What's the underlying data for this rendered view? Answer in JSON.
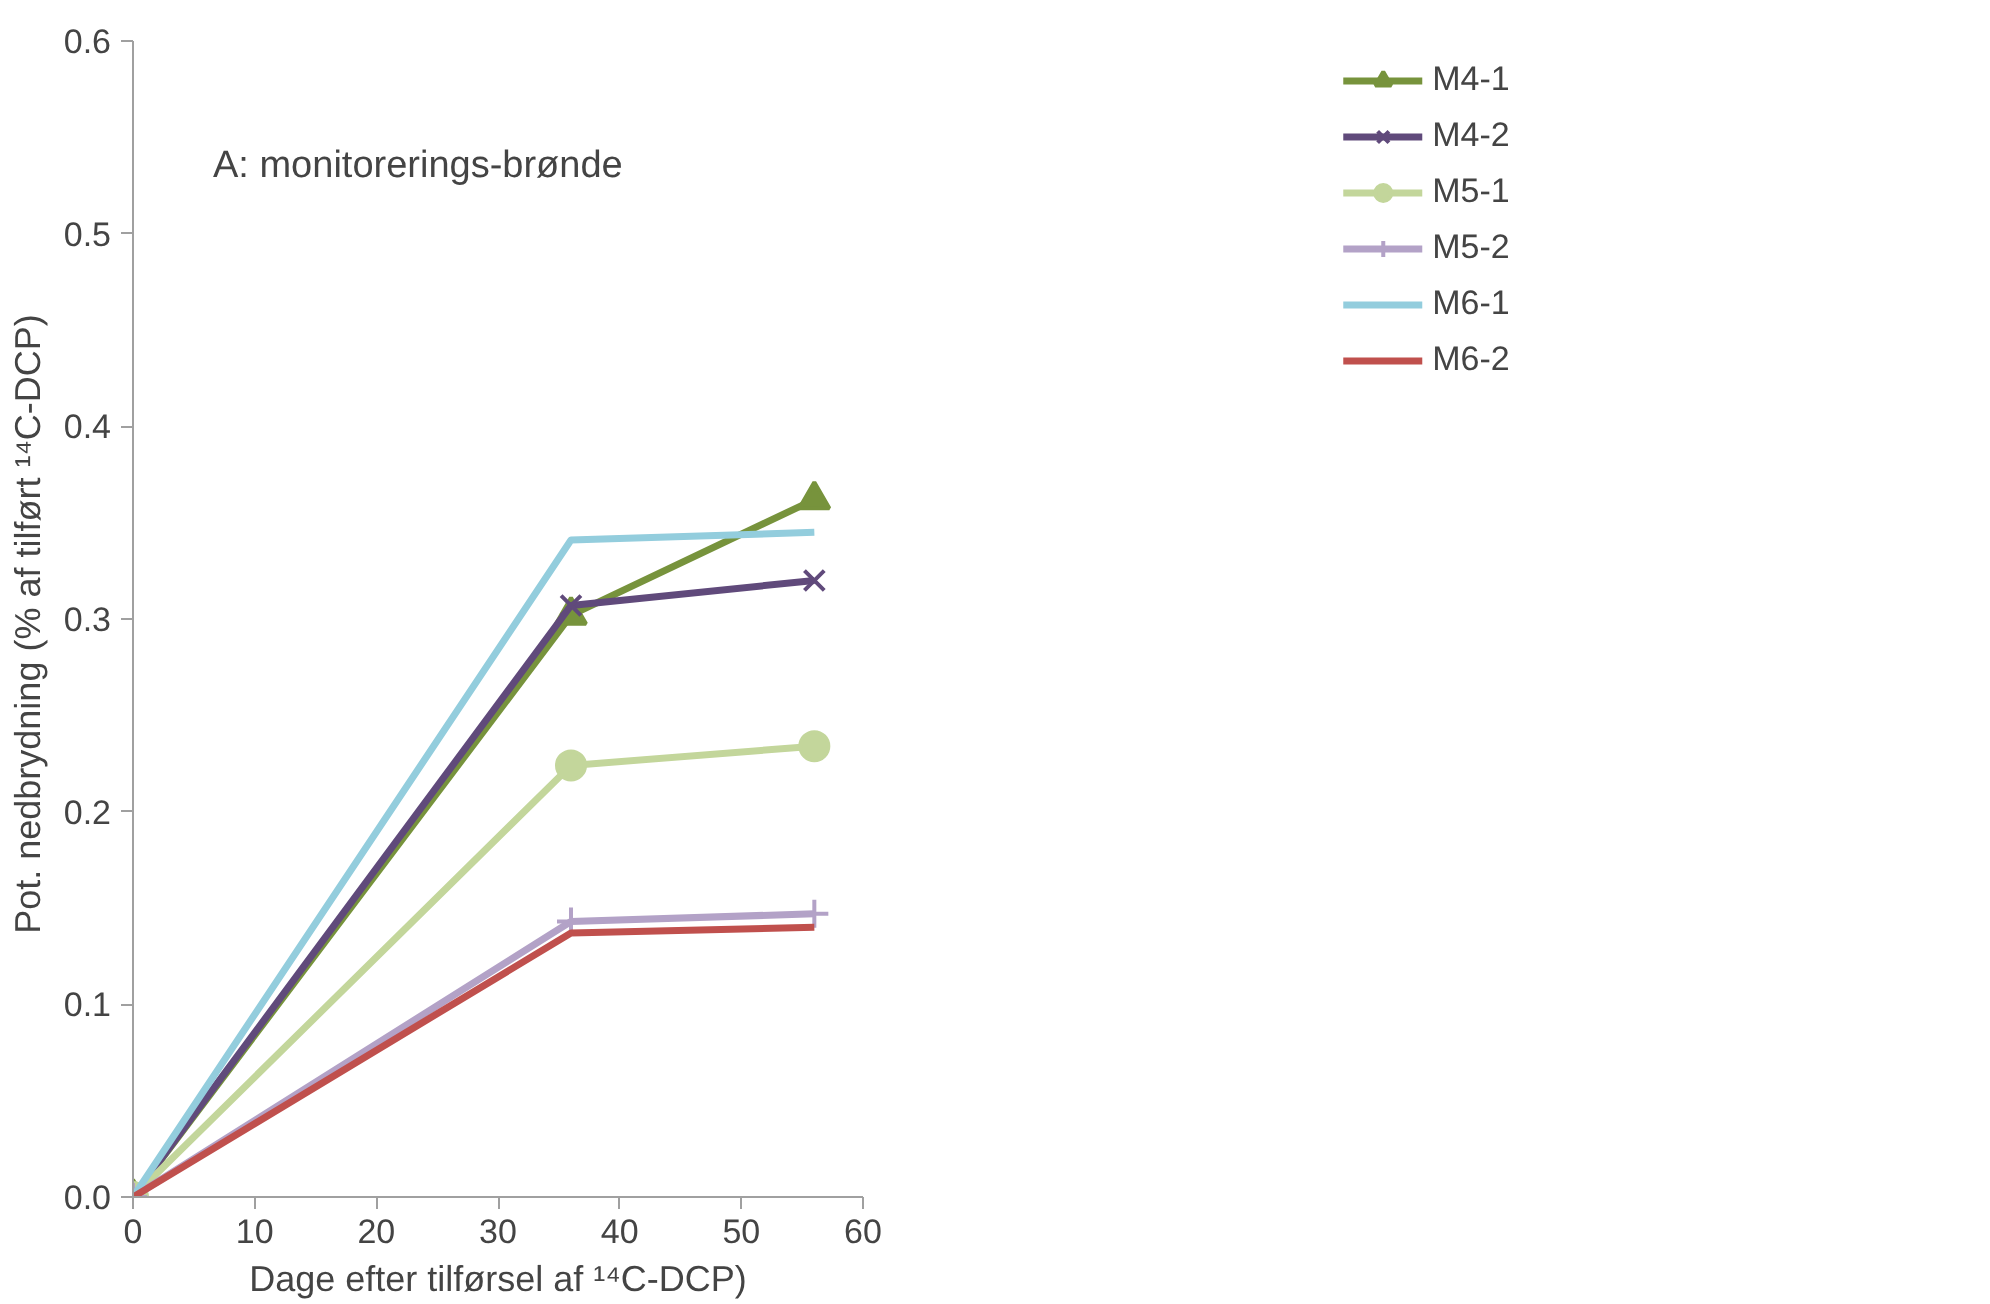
{
  "chart_data": {
    "type": "line",
    "xlabel": "Dage efter tilførsel af ¹⁴C-DCP)",
    "ylabel": "Pot. nedbrydning  (% af tilført ¹⁴C-DCP)",
    "annotations": [
      "A: monitorerings-brønde"
    ],
    "x": [
      0,
      36,
      56
    ],
    "xlim": [
      0,
      60
    ],
    "xticks": [
      0,
      10,
      20,
      30,
      40,
      50,
      60
    ],
    "ylim": [
      0,
      0.6
    ],
    "yticks": [
      {
        "value": 0,
        "label": "0.0"
      },
      0.1,
      0.2,
      0.3,
      0.4,
      0.5,
      0.6
    ],
    "grid": false,
    "legend": "right",
    "line_style": "solid",
    "series": [
      {
        "name": "M4-1",
        "color": "#77933c",
        "marker": "triangle",
        "values": [
          0,
          0.302,
          0.362
        ]
      },
      {
        "name": "M4-2",
        "color": "#604a7b",
        "marker": "x",
        "values": [
          0,
          0.307,
          0.32
        ]
      },
      {
        "name": "M5-1",
        "color": "#c3d69b",
        "marker": "circle",
        "values": [
          0,
          0.224,
          0.234
        ]
      },
      {
        "name": "M5-2",
        "color": "#b3a2c7",
        "marker": "cross",
        "values": [
          0,
          0.143,
          0.147
        ]
      },
      {
        "name": "M6-1",
        "color": "#93cddd",
        "marker": "none",
        "values": [
          0,
          0.341,
          0.345
        ]
      },
      {
        "name": "M6-2",
        "color": "#c0504d",
        "marker": "none",
        "values": [
          0,
          0.137,
          0.14
        ]
      }
    ]
  }
}
